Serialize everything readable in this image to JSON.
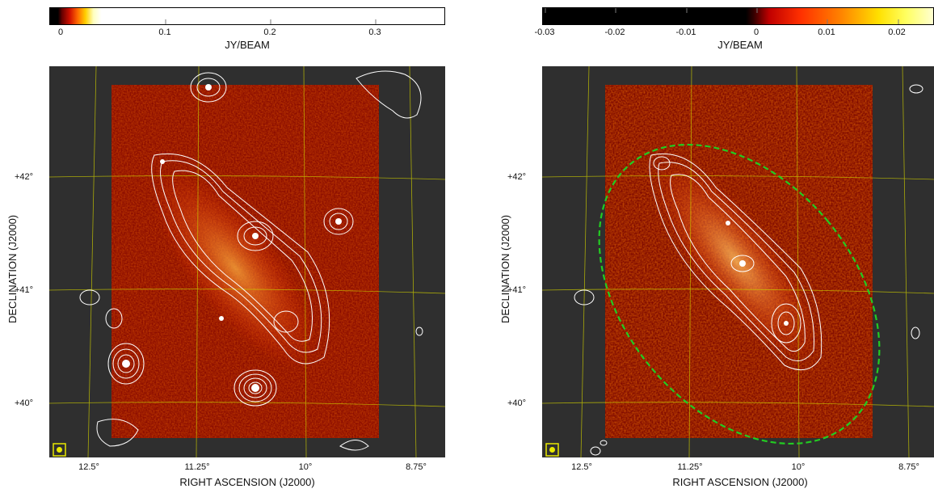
{
  "panels": [
    {
      "colorbar": {
        "title": "JY/BEAM",
        "ticks": [
          "0",
          "0.1",
          "0.2",
          "0.3"
        ],
        "colormap": "heat"
      },
      "axes": {
        "xlabel": "RIGHT ASCENSION (J2000)",
        "ylabel": "DECLINATION (J2000)",
        "xticks": [
          "12.5°",
          "11.25°",
          "10°",
          "8.75°"
        ],
        "yticks": [
          "+42°",
          "+41°",
          "+40°"
        ]
      },
      "beam_marker": "beam-icon",
      "contour_color": "#ffffff",
      "grid_color": "#c8c800",
      "ellipse": false
    },
    {
      "colorbar": {
        "title": "JY/BEAM",
        "ticks": [
          "-0.03",
          "-0.02",
          "-0.01",
          "0",
          "0.01",
          "0.02"
        ],
        "colormap": "heat"
      },
      "axes": {
        "xlabel": "RIGHT ASCENSION (J2000)",
        "ylabel": "DECLINATION (J2000)",
        "xticks": [
          "12.5°",
          "11.25°",
          "10°",
          "8.75°"
        ],
        "yticks": [
          "+42°",
          "+41°",
          "+40°"
        ]
      },
      "beam_marker": "beam-icon",
      "contour_color": "#ffffff",
      "grid_color": "#c8c800",
      "ellipse": true,
      "ellipse_color": "#22cc22"
    }
  ]
}
